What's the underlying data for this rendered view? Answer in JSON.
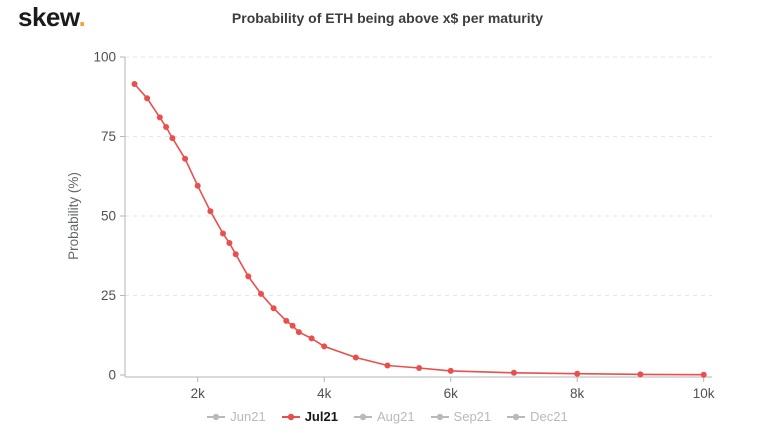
{
  "brand": {
    "name": "skew",
    "dot": "."
  },
  "header": {
    "title": "Probability of ETH being above x$ per maturity"
  },
  "colors": {
    "accent_red": "#e94f4d",
    "inactive_gray": "#b7babc",
    "grid": "#e4e4e4",
    "axis": "#b4b6b8",
    "tick_text": "#4e5154",
    "axis_label_text": "#64676a",
    "title_text": "#3b3e40",
    "brand_dot": "#f0a32e",
    "brand_text": "#1b1b1b",
    "active_legend_text": "#17181a",
    "background": "#ffffff"
  },
  "chart_data": {
    "type": "line",
    "title": "Probability of ETH being above x$ per maturity",
    "xlabel": "",
    "ylabel": "Probability (%)",
    "xlim": [
      850,
      10100
    ],
    "ylim": [
      0,
      100
    ],
    "grid": "horizontal-dashed",
    "legend_position": "bottom",
    "x_ticks": [
      {
        "value": 2000,
        "label": "2k"
      },
      {
        "value": 4000,
        "label": "4k"
      },
      {
        "value": 6000,
        "label": "6k"
      },
      {
        "value": 8000,
        "label": "8k"
      },
      {
        "value": 10000,
        "label": "10k"
      }
    ],
    "y_ticks": [
      {
        "value": 0,
        "label": "0"
      },
      {
        "value": 25,
        "label": "25"
      },
      {
        "value": 50,
        "label": "50"
      },
      {
        "value": 75,
        "label": "75"
      },
      {
        "value": 100,
        "label": "100"
      }
    ],
    "series": [
      {
        "name": "Jun21",
        "active": false,
        "color": "#b7babc",
        "points": []
      },
      {
        "name": "Jul21",
        "active": true,
        "color": "#e94f4d",
        "points": [
          [
            1000,
            91.5
          ],
          [
            1200,
            87
          ],
          [
            1400,
            81
          ],
          [
            1500,
            78
          ],
          [
            1600,
            74.5
          ],
          [
            1800,
            68
          ],
          [
            2000,
            59.5
          ],
          [
            2200,
            51.5
          ],
          [
            2400,
            44.5
          ],
          [
            2500,
            41.5
          ],
          [
            2600,
            38
          ],
          [
            2800,
            31
          ],
          [
            3000,
            25.5
          ],
          [
            3200,
            21
          ],
          [
            3400,
            17
          ],
          [
            3500,
            15.5
          ],
          [
            3600,
            13.5
          ],
          [
            3800,
            11.5
          ],
          [
            4000,
            9
          ],
          [
            4500,
            5.5
          ],
          [
            5000,
            3
          ],
          [
            5500,
            2.2
          ],
          [
            6000,
            1.3
          ],
          [
            7000,
            0.7
          ],
          [
            8000,
            0.4
          ],
          [
            9000,
            0.2
          ],
          [
            10000,
            0.1
          ]
        ]
      },
      {
        "name": "Aug21",
        "active": false,
        "color": "#b7babc",
        "points": []
      },
      {
        "name": "Sep21",
        "active": false,
        "color": "#b7babc",
        "points": []
      },
      {
        "name": "Dec21",
        "active": false,
        "color": "#b7babc",
        "points": []
      }
    ]
  }
}
